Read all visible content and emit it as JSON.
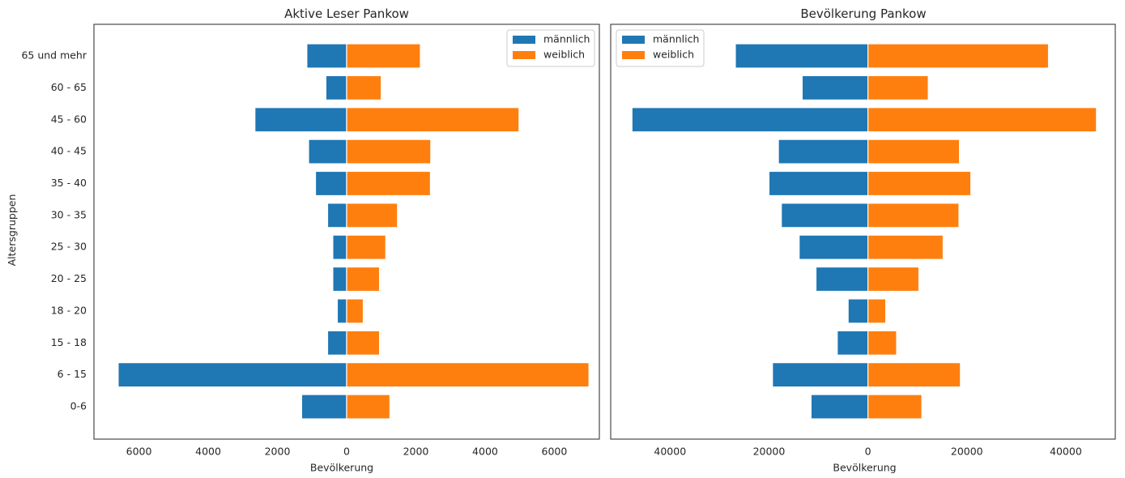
{
  "ylabel": "Altersgruppen",
  "categories": [
    "0-6",
    "6 - 15",
    "15 - 18",
    "18 - 20",
    "20 - 25",
    "25 - 30",
    "30 - 35",
    "35 - 40",
    "40 - 45",
    "45 - 60",
    "60 - 65",
    "65 und mehr"
  ],
  "colors": {
    "maennlich": "#1f77b4",
    "weiblich": "#ff7f0e"
  },
  "chart_data": [
    {
      "type": "bar",
      "orientation": "horizontal",
      "title": "Aktive Leser Pankow",
      "xlabel": "Bevölkerung",
      "ylabel": "Altersgruppen",
      "xlim": [
        -7300,
        7300
      ],
      "xticks": [
        -6000,
        -4000,
        -2000,
        0,
        2000,
        4000,
        6000
      ],
      "xtick_labels": [
        "6000",
        "4000",
        "2000",
        "0",
        "2000",
        "4000",
        "6000"
      ],
      "legend_position": "top-right",
      "categories": [
        "0-6",
        "6 - 15",
        "15 - 18",
        "18 - 20",
        "20 - 25",
        "25 - 30",
        "30 - 35",
        "35 - 40",
        "40 - 45",
        "45 - 60",
        "60 - 65",
        "65 und mehr"
      ],
      "series": [
        {
          "name": "männlich",
          "values": [
            -1300,
            -6600,
            -550,
            -270,
            -400,
            -400,
            -550,
            -900,
            -1100,
            -2650,
            -600,
            -1150
          ]
        },
        {
          "name": "weiblich",
          "values": [
            1250,
            7000,
            950,
            480,
            950,
            1130,
            1470,
            2420,
            2430,
            4980,
            1000,
            2130
          ]
        }
      ]
    },
    {
      "type": "bar",
      "orientation": "horizontal",
      "title": "Bevölkerung Pankow",
      "xlabel": "Bevölkerung",
      "ylabel": "",
      "xlim": [
        -52000,
        50000
      ],
      "xticks": [
        -40000,
        -20000,
        0,
        20000,
        40000
      ],
      "xtick_labels": [
        "40000",
        "20000",
        "0",
        "20000",
        "40000"
      ],
      "legend_position": "top-left",
      "categories": [
        "0-6",
        "6 - 15",
        "15 - 18",
        "18 - 20",
        "20 - 25",
        "25 - 30",
        "30 - 35",
        "35 - 40",
        "40 - 45",
        "45 - 60",
        "60 - 65",
        "65 und mehr"
      ],
      "series": [
        {
          "name": "männlich",
          "values": [
            -11500,
            -19300,
            -6200,
            -4000,
            -10500,
            -13900,
            -17500,
            -20000,
            -18100,
            -47700,
            -13300,
            -26800
          ]
        },
        {
          "name": "weiblich",
          "values": [
            10900,
            18700,
            5800,
            3600,
            10300,
            15200,
            18400,
            20800,
            18500,
            46200,
            12200,
            36500
          ]
        }
      ]
    }
  ]
}
